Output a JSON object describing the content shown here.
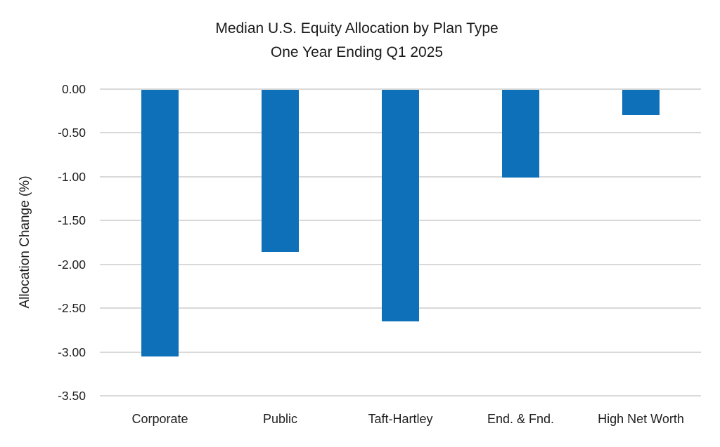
{
  "chart_data": {
    "type": "bar",
    "title": "Median U.S. Equity Allocation by Plan Type",
    "subtitle": "One Year Ending Q1 2025",
    "categories": [
      "Corporate",
      "Public",
      "Taft-Hartley",
      "End. & Fnd.",
      "High Net Worth"
    ],
    "values": [
      -3.04,
      -1.85,
      -2.64,
      -1.0,
      -0.29
    ],
    "xlabel": "",
    "ylabel": "Allocation Change (%)",
    "ylim": [
      -3.5,
      0
    ],
    "yticks": [
      0.0,
      -0.5,
      -1.0,
      -1.5,
      -2.0,
      -2.5,
      -3.0,
      -3.5
    ],
    "ytick_labels": [
      "0.00",
      "-0.50",
      "-1.00",
      "-1.50",
      "-2.00",
      "-2.50",
      "-3.00",
      "-3.50"
    ],
    "grid": true,
    "legend": false,
    "bar_color": "#0d70b8",
    "gridline_color": "#d9d9d9",
    "background_color": "#ffffff",
    "text_color": "#1f1f1f"
  }
}
